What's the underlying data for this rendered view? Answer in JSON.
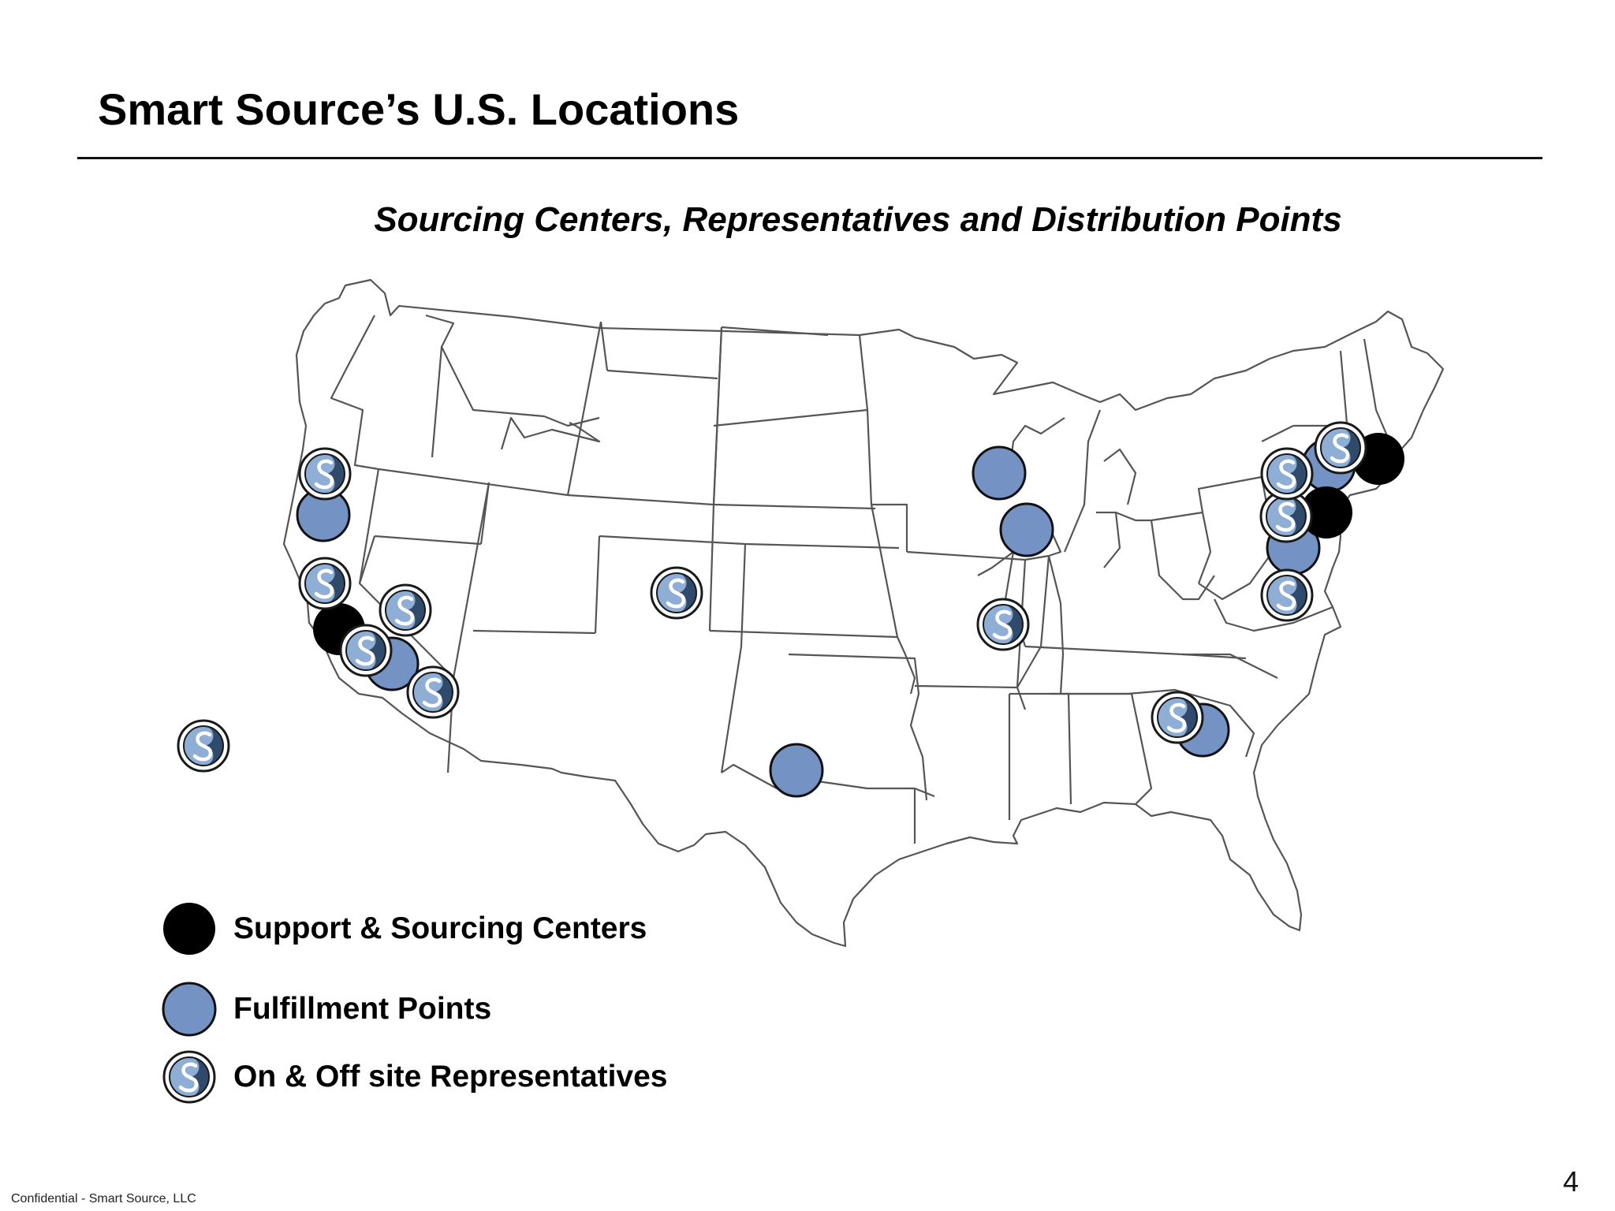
{
  "header": {
    "title": "Smart Source’s U.S. Locations"
  },
  "map": {
    "subtitle": "Sourcing Centers, Representatives and Distribution Points",
    "colors": {
      "support": "#000000",
      "fulfillment": "#7592c4",
      "rep_dark": "#2f4a6b",
      "rep_light": "#8eaed6",
      "state_line": "#555555"
    }
  },
  "legend": {
    "items": [
      {
        "label": "Support & Sourcing Centers",
        "marker": "support"
      },
      {
        "label": "Fulfillment Points",
        "marker": "fulfillment"
      },
      {
        "label": "On & Off site Representatives",
        "marker": "representative"
      }
    ]
  },
  "footer": {
    "confidential": "Confidential - Smart Source, LLC",
    "page": "4"
  }
}
